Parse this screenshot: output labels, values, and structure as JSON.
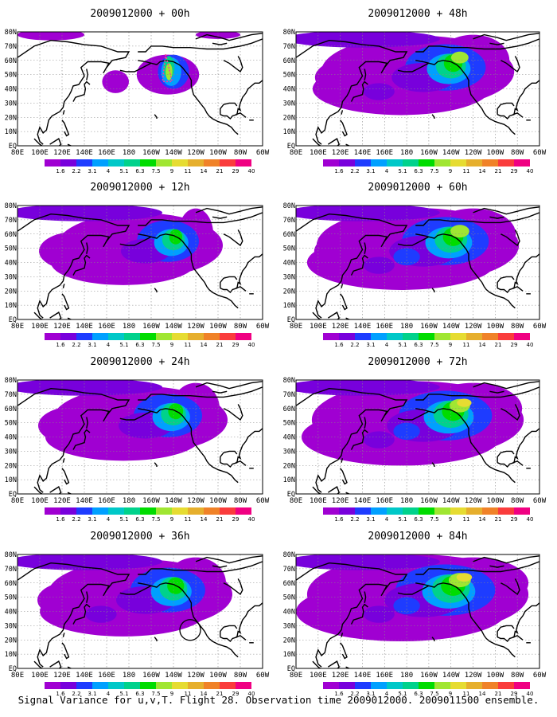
{
  "caption": "Signal Variance for u,v,T. Flight 28. Observation time 2009012000. 2009011500 ensemble.",
  "colorbar": {
    "labels": [
      "1.6",
      "2.2",
      "3.1",
      "4",
      "5.1",
      "6.3",
      "7.5",
      "9",
      "11",
      "14",
      "21",
      "29",
      "40"
    ],
    "colors": [
      "#a000d2",
      "#7800dc",
      "#1e3cff",
      "#00a0ff",
      "#00c8c8",
      "#00d28c",
      "#00dc00",
      "#a0e632",
      "#e6dc32",
      "#e6af2d",
      "#f08228",
      "#fa3c3c",
      "#f00082"
    ]
  },
  "axes": {
    "x_labels": [
      "80E",
      "100E",
      "120E",
      "140E",
      "160E",
      "180",
      "160W",
      "140W",
      "120W",
      "100W",
      "80W",
      "60W"
    ],
    "y_labels": [
      "EQ",
      "10N",
      "20N",
      "30N",
      "40N",
      "50N",
      "60N",
      "70N",
      "80N"
    ]
  },
  "chart_data": [
    {
      "type": "heatmap",
      "title": "2009012000 + 00h",
      "intensity": 0,
      "variable": "Signal Variance for u,v,T",
      "max_class": "9"
    },
    {
      "type": "heatmap",
      "title": "2009012000 + 12h",
      "intensity": 1,
      "variable": "Signal Variance for u,v,T",
      "max_class": "11"
    },
    {
      "type": "heatmap",
      "title": "2009012000 + 24h",
      "intensity": 2,
      "variable": "Signal Variance for u,v,T",
      "max_class": "11"
    },
    {
      "type": "heatmap",
      "title": "2009012000 + 36h",
      "intensity": 3,
      "variable": "Signal Variance for u,v,T",
      "max_class": "11"
    },
    {
      "type": "heatmap",
      "title": "2009012000 + 48h",
      "intensity": 4,
      "variable": "Signal Variance for u,v,T",
      "max_class": "11"
    },
    {
      "type": "heatmap",
      "title": "2009012000 + 60h",
      "intensity": 5,
      "variable": "Signal Variance for u,v,T",
      "max_class": "11"
    },
    {
      "type": "heatmap",
      "title": "2009012000 + 72h",
      "intensity": 6,
      "variable": "Signal Variance for u,v,T",
      "max_class": "14"
    },
    {
      "type": "heatmap",
      "title": "2009012000 + 84h",
      "intensity": 7,
      "variable": "Signal Variance for u,v,T",
      "max_class": "14"
    }
  ]
}
